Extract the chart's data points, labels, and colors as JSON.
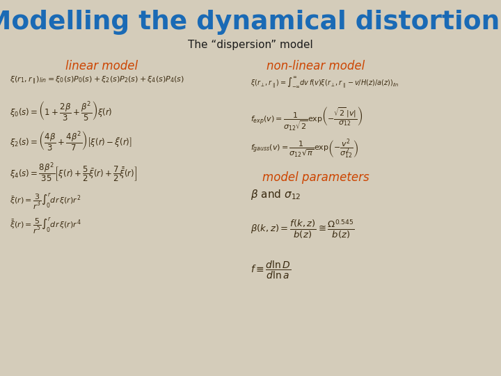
{
  "title": "Modelling the dynamical distortions",
  "subtitle": "The “dispersion” model",
  "bg_color": "#d4ccba",
  "title_color": "#1a6ab5",
  "subtitle_color": "#1a1a1a",
  "header_color": "#cc4400",
  "formula_color": "#3a2a10",
  "left_header": "linear model",
  "right_header": "non-linear model",
  "params_header": "model parameters"
}
